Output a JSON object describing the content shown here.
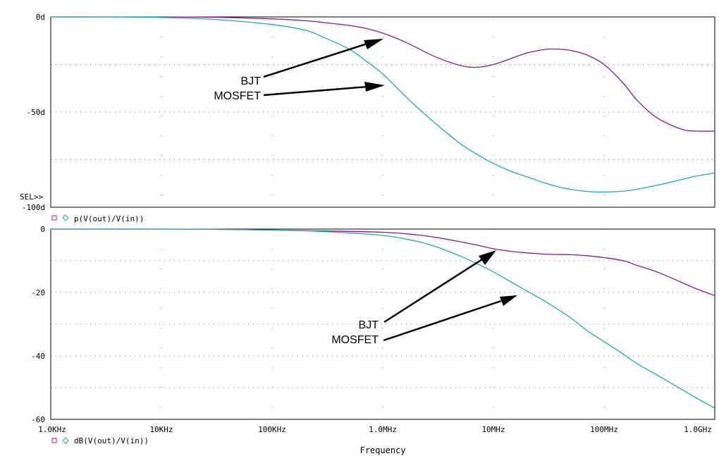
{
  "colors": {
    "bjt": "#8b1a89",
    "mosfet": "#1eaab4",
    "axis": "#000000",
    "grid": "#7a7a7a",
    "text": "#000000",
    "marker_square": "#c0129a",
    "marker_diamond": "#1eaab4"
  },
  "frequency_ticks": [
    "1.0KHz",
    "10KHz",
    "100KHz",
    "1.0MHz",
    "10MHz",
    "100MHz",
    "1.0GHz"
  ],
  "frequency_axis_label": "Frequency",
  "chart_data": [
    {
      "type": "line",
      "trace_label": "p(V(out)/V(in))",
      "x_scale": "log",
      "xlim": [
        1000,
        1000000000
      ],
      "ylim": [
        -100,
        0
      ],
      "y_ticks": [
        "0d",
        "-50d",
        "-100d"
      ],
      "sel_marker": "SEL>>",
      "grid": true,
      "annotations": [
        {
          "text": "BJT",
          "points_to": [
            1000000,
            -11
          ]
        },
        {
          "text": "MOSFET",
          "points_to": [
            1000000,
            -36
          ]
        }
      ],
      "x": [
        1000,
        3000,
        10000,
        30000,
        100000,
        200000,
        300000,
        500000,
        700000,
        1000000,
        1500000,
        2000000,
        3000000,
        5000000,
        7000000,
        10000000,
        15000000,
        20000000,
        30000000,
        40000000,
        50000000,
        70000000,
        100000000,
        150000000,
        200000000,
        300000000,
        500000000,
        700000000,
        1000000000
      ],
      "series": [
        {
          "name": "BJT",
          "values": [
            0,
            0,
            0,
            -0.2,
            -1,
            -2,
            -3,
            -4.5,
            -6,
            -8.5,
            -12.5,
            -16,
            -21,
            -25.5,
            -26.5,
            -25,
            -21.5,
            -19,
            -17,
            -17,
            -17.6,
            -20,
            -25,
            -35,
            -44,
            -53,
            -59,
            -60,
            -60
          ]
        },
        {
          "name": "MOSFET",
          "values": [
            0,
            0,
            -0.3,
            -1.3,
            -4,
            -7,
            -11,
            -17,
            -23,
            -30,
            -40,
            -47,
            -56,
            -66.5,
            -72,
            -77,
            -81.5,
            -84,
            -87.5,
            -89.5,
            -90.6,
            -91.7,
            -92,
            -91.5,
            -90.5,
            -88.5,
            -85.5,
            -83.5,
            -82
          ]
        }
      ]
    },
    {
      "type": "line",
      "trace_label": "dB(V(out)/V(in))",
      "x_scale": "log",
      "xlim": [
        1000,
        1000000000
      ],
      "ylim": [
        -60,
        0
      ],
      "y_ticks": [
        "0",
        "-20",
        "-40",
        "-60"
      ],
      "grid": true,
      "annotations": [
        {
          "text": "BJT",
          "points_to": [
            10000000,
            -6.3
          ]
        },
        {
          "text": "MOSFET",
          "points_to": [
            18000000,
            -21
          ]
        }
      ],
      "x": [
        1000,
        3000,
        10000,
        30000,
        100000,
        300000,
        1000000,
        2000000,
        3000000,
        5000000,
        7000000,
        10000000,
        15000000,
        20000000,
        30000000,
        50000000,
        70000000,
        100000000,
        150000000,
        200000000,
        300000000,
        500000000,
        700000000,
        1000000000
      ],
      "series": [
        {
          "name": "BJT",
          "values": [
            0,
            0,
            0,
            -0.1,
            -0.3,
            -0.6,
            -1,
            -1.8,
            -2.6,
            -4,
            -5,
            -6.2,
            -7.1,
            -7.5,
            -7.9,
            -8.1,
            -8.4,
            -9,
            -10,
            -11.5,
            -13.5,
            -16.8,
            -19,
            -21
          ]
        },
        {
          "name": "MOSFET",
          "values": [
            0,
            0,
            0,
            -0.1,
            -0.3,
            -0.8,
            -2,
            -3.8,
            -5.5,
            -8.5,
            -10.8,
            -13.5,
            -17,
            -19.5,
            -23,
            -28,
            -32,
            -35.5,
            -39.5,
            -42.5,
            -46,
            -50.5,
            -53.5,
            -56.5
          ]
        }
      ]
    }
  ]
}
